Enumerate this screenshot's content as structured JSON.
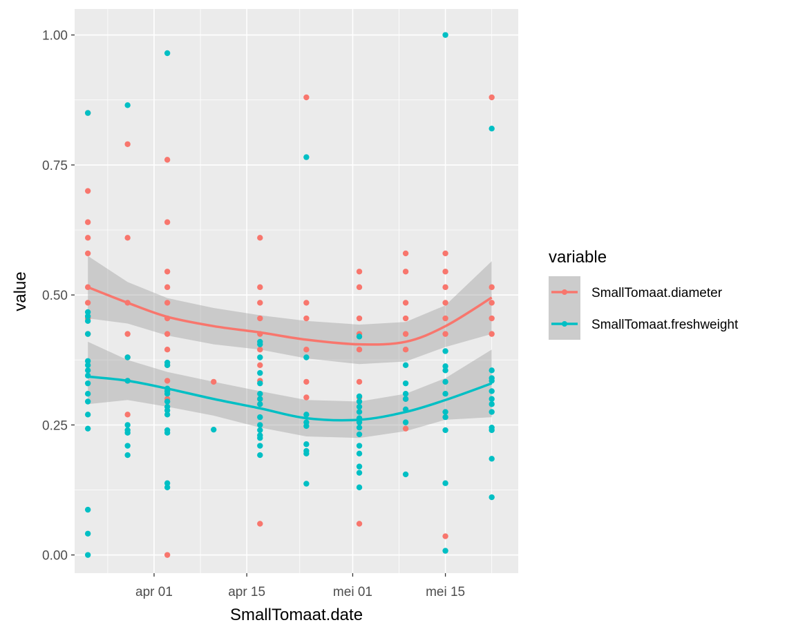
{
  "chart_data": {
    "type": "scatter",
    "title": "",
    "xlabel": "SmallTomaat.date",
    "ylabel": "value",
    "x_axis": {
      "type": "date",
      "range": [
        "2019-03-20",
        "2019-05-26"
      ],
      "tick_dates": [
        "2019-04-01",
        "2019-04-15",
        "2019-05-01",
        "2019-05-15"
      ],
      "tick_labels": [
        "apr 01",
        "apr 15",
        "mei 01",
        "mei 15"
      ]
    },
    "y_axis": {
      "range": [
        -0.035,
        1.05
      ],
      "ticks": [
        0.0,
        0.25,
        0.5,
        0.75,
        1.0
      ],
      "tick_labels": [
        "0.00",
        "0.25",
        "0.50",
        "0.75",
        "1.00"
      ]
    },
    "grid": true,
    "panel_background": "#ebebeb",
    "legend": {
      "title": "variable",
      "position": "right",
      "entries": [
        "SmallTomaat.diameter",
        "SmallTomaat.freshweight"
      ]
    },
    "series": [
      {
        "name": "SmallTomaat.diameter",
        "color": "#f8766d",
        "points": [
          [
            "2019-03-22",
            0.85
          ],
          [
            "2019-03-22",
            0.7
          ],
          [
            "2019-03-22",
            0.64
          ],
          [
            "2019-03-22",
            0.61
          ],
          [
            "2019-03-22",
            0.58
          ],
          [
            "2019-03-22",
            0.515
          ],
          [
            "2019-03-22",
            0.485
          ],
          [
            "2019-03-22",
            0.455
          ],
          [
            "2019-03-22",
            0.425
          ],
          [
            "2019-03-28",
            0.79
          ],
          [
            "2019-03-28",
            0.61
          ],
          [
            "2019-03-28",
            0.485
          ],
          [
            "2019-03-28",
            0.425
          ],
          [
            "2019-03-28",
            0.38
          ],
          [
            "2019-03-28",
            0.335
          ],
          [
            "2019-03-28",
            0.27
          ],
          [
            "2019-04-03",
            0.76
          ],
          [
            "2019-04-03",
            0.64
          ],
          [
            "2019-04-03",
            0.545
          ],
          [
            "2019-04-03",
            0.515
          ],
          [
            "2019-04-03",
            0.485
          ],
          [
            "2019-04-03",
            0.455
          ],
          [
            "2019-04-03",
            0.425
          ],
          [
            "2019-04-03",
            0.395
          ],
          [
            "2019-04-03",
            0.365
          ],
          [
            "2019-04-03",
            0.335
          ],
          [
            "2019-04-03",
            0.3
          ],
          [
            "2019-04-03",
            0.0
          ],
          [
            "2019-04-10",
            0.333
          ],
          [
            "2019-04-17",
            0.61
          ],
          [
            "2019-04-17",
            0.515
          ],
          [
            "2019-04-17",
            0.485
          ],
          [
            "2019-04-17",
            0.455
          ],
          [
            "2019-04-17",
            0.425
          ],
          [
            "2019-04-17",
            0.395
          ],
          [
            "2019-04-17",
            0.365
          ],
          [
            "2019-04-17",
            0.335
          ],
          [
            "2019-04-17",
            0.3
          ],
          [
            "2019-04-17",
            0.06
          ],
          [
            "2019-04-24",
            0.88
          ],
          [
            "2019-04-24",
            0.485
          ],
          [
            "2019-04-24",
            0.455
          ],
          [
            "2019-04-24",
            0.395
          ],
          [
            "2019-04-24",
            0.333
          ],
          [
            "2019-04-24",
            0.303
          ],
          [
            "2019-05-02",
            0.545
          ],
          [
            "2019-05-02",
            0.515
          ],
          [
            "2019-05-02",
            0.455
          ],
          [
            "2019-05-02",
            0.425
          ],
          [
            "2019-05-02",
            0.395
          ],
          [
            "2019-05-02",
            0.333
          ],
          [
            "2019-05-02",
            0.303
          ],
          [
            "2019-05-02",
            0.06
          ],
          [
            "2019-05-09",
            0.58
          ],
          [
            "2019-05-09",
            0.545
          ],
          [
            "2019-05-09",
            0.485
          ],
          [
            "2019-05-09",
            0.455
          ],
          [
            "2019-05-09",
            0.425
          ],
          [
            "2019-05-09",
            0.395
          ],
          [
            "2019-05-09",
            0.3
          ],
          [
            "2019-05-09",
            0.243
          ],
          [
            "2019-05-15",
            0.58
          ],
          [
            "2019-05-15",
            0.545
          ],
          [
            "2019-05-15",
            0.515
          ],
          [
            "2019-05-15",
            0.485
          ],
          [
            "2019-05-15",
            0.455
          ],
          [
            "2019-05-15",
            0.425
          ],
          [
            "2019-05-15",
            0.036
          ],
          [
            "2019-05-22",
            0.88
          ],
          [
            "2019-05-22",
            0.515
          ],
          [
            "2019-05-22",
            0.485
          ],
          [
            "2019-05-22",
            0.455
          ],
          [
            "2019-05-22",
            0.425
          ]
        ],
        "smooth_line": [
          [
            "2019-03-22",
            0.515
          ],
          [
            "2019-03-28",
            0.485
          ],
          [
            "2019-04-03",
            0.458
          ],
          [
            "2019-04-10",
            0.44
          ],
          [
            "2019-04-17",
            0.428
          ],
          [
            "2019-04-24",
            0.414
          ],
          [
            "2019-05-02",
            0.405
          ],
          [
            "2019-05-09",
            0.41
          ],
          [
            "2019-05-15",
            0.44
          ],
          [
            "2019-05-22",
            0.495
          ]
        ],
        "smooth_band": [
          [
            "2019-03-22",
            0.455,
            0.575
          ],
          [
            "2019-03-28",
            0.445,
            0.525
          ],
          [
            "2019-04-03",
            0.422,
            0.494
          ],
          [
            "2019-04-10",
            0.405,
            0.475
          ],
          [
            "2019-04-17",
            0.395,
            0.461
          ],
          [
            "2019-04-24",
            0.378,
            0.45
          ],
          [
            "2019-05-02",
            0.367,
            0.443
          ],
          [
            "2019-05-09",
            0.372,
            0.448
          ],
          [
            "2019-05-15",
            0.4,
            0.48
          ],
          [
            "2019-05-22",
            0.425,
            0.565
          ]
        ]
      },
      {
        "name": "SmallTomaat.freshweight",
        "color": "#00bfc4",
        "points": [
          [
            "2019-03-22",
            0.85
          ],
          [
            "2019-03-22",
            0.467
          ],
          [
            "2019-03-22",
            0.459
          ],
          [
            "2019-03-22",
            0.45
          ],
          [
            "2019-03-22",
            0.425
          ],
          [
            "2019-03-22",
            0.373
          ],
          [
            "2019-03-22",
            0.365
          ],
          [
            "2019-03-22",
            0.355
          ],
          [
            "2019-03-22",
            0.345
          ],
          [
            "2019-03-22",
            0.33
          ],
          [
            "2019-03-22",
            0.31
          ],
          [
            "2019-03-22",
            0.295
          ],
          [
            "2019-03-22",
            0.27
          ],
          [
            "2019-03-22",
            0.243
          ],
          [
            "2019-03-22",
            0.087
          ],
          [
            "2019-03-22",
            0.041
          ],
          [
            "2019-03-22",
            0.0
          ],
          [
            "2019-03-28",
            0.865
          ],
          [
            "2019-03-28",
            0.38
          ],
          [
            "2019-03-28",
            0.335
          ],
          [
            "2019-03-28",
            0.25
          ],
          [
            "2019-03-28",
            0.24
          ],
          [
            "2019-03-28",
            0.235
          ],
          [
            "2019-03-28",
            0.21
          ],
          [
            "2019-03-28",
            0.192
          ],
          [
            "2019-04-03",
            0.965
          ],
          [
            "2019-04-03",
            0.37
          ],
          [
            "2019-04-03",
            0.365
          ],
          [
            "2019-04-03",
            0.32
          ],
          [
            "2019-04-03",
            0.315
          ],
          [
            "2019-04-03",
            0.31
          ],
          [
            "2019-04-03",
            0.295
          ],
          [
            "2019-04-03",
            0.285
          ],
          [
            "2019-04-03",
            0.278
          ],
          [
            "2019-04-03",
            0.27
          ],
          [
            "2019-04-03",
            0.24
          ],
          [
            "2019-04-03",
            0.235
          ],
          [
            "2019-04-03",
            0.138
          ],
          [
            "2019-04-03",
            0.13
          ],
          [
            "2019-04-10",
            0.241
          ],
          [
            "2019-04-17",
            0.41
          ],
          [
            "2019-04-17",
            0.405
          ],
          [
            "2019-04-17",
            0.38
          ],
          [
            "2019-04-17",
            0.35
          ],
          [
            "2019-04-17",
            0.33
          ],
          [
            "2019-04-17",
            0.31
          ],
          [
            "2019-04-17",
            0.3
          ],
          [
            "2019-04-17",
            0.29
          ],
          [
            "2019-04-17",
            0.265
          ],
          [
            "2019-04-17",
            0.25
          ],
          [
            "2019-04-17",
            0.24
          ],
          [
            "2019-04-17",
            0.23
          ],
          [
            "2019-04-17",
            0.225
          ],
          [
            "2019-04-17",
            0.21
          ],
          [
            "2019-04-17",
            0.192
          ],
          [
            "2019-04-24",
            0.765
          ],
          [
            "2019-04-24",
            0.38
          ],
          [
            "2019-04-24",
            0.27
          ],
          [
            "2019-04-24",
            0.255
          ],
          [
            "2019-04-24",
            0.248
          ],
          [
            "2019-04-24",
            0.213
          ],
          [
            "2019-04-24",
            0.2
          ],
          [
            "2019-04-24",
            0.195
          ],
          [
            "2019-04-24",
            0.137
          ],
          [
            "2019-05-02",
            0.42
          ],
          [
            "2019-05-02",
            0.305
          ],
          [
            "2019-05-02",
            0.295
          ],
          [
            "2019-05-02",
            0.285
          ],
          [
            "2019-05-02",
            0.275
          ],
          [
            "2019-05-02",
            0.263
          ],
          [
            "2019-05-02",
            0.255
          ],
          [
            "2019-05-02",
            0.245
          ],
          [
            "2019-05-02",
            0.232
          ],
          [
            "2019-05-02",
            0.21
          ],
          [
            "2019-05-02",
            0.195
          ],
          [
            "2019-05-02",
            0.17
          ],
          [
            "2019-05-02",
            0.158
          ],
          [
            "2019-05-02",
            0.13
          ],
          [
            "2019-05-09",
            0.365
          ],
          [
            "2019-05-09",
            0.33
          ],
          [
            "2019-05-09",
            0.31
          ],
          [
            "2019-05-09",
            0.3
          ],
          [
            "2019-05-09",
            0.28
          ],
          [
            "2019-05-09",
            0.255
          ],
          [
            "2019-05-09",
            0.155
          ],
          [
            "2019-05-15",
            1.0
          ],
          [
            "2019-05-15",
            0.392
          ],
          [
            "2019-05-15",
            0.363
          ],
          [
            "2019-05-15",
            0.355
          ],
          [
            "2019-05-15",
            0.333
          ],
          [
            "2019-05-15",
            0.31
          ],
          [
            "2019-05-15",
            0.275
          ],
          [
            "2019-05-15",
            0.265
          ],
          [
            "2019-05-15",
            0.24
          ],
          [
            "2019-05-15",
            0.138
          ],
          [
            "2019-05-15",
            0.008
          ],
          [
            "2019-05-22",
            0.82
          ],
          [
            "2019-05-22",
            0.355
          ],
          [
            "2019-05-22",
            0.34
          ],
          [
            "2019-05-22",
            0.335
          ],
          [
            "2019-05-22",
            0.315
          ],
          [
            "2019-05-22",
            0.3
          ],
          [
            "2019-05-22",
            0.29
          ],
          [
            "2019-05-22",
            0.275
          ],
          [
            "2019-05-22",
            0.245
          ],
          [
            "2019-05-22",
            0.24
          ],
          [
            "2019-05-22",
            0.185
          ],
          [
            "2019-05-22",
            0.111
          ]
        ],
        "smooth_line": [
          [
            "2019-03-22",
            0.343
          ],
          [
            "2019-03-28",
            0.335
          ],
          [
            "2019-04-03",
            0.32
          ],
          [
            "2019-04-10",
            0.3
          ],
          [
            "2019-04-17",
            0.282
          ],
          [
            "2019-04-24",
            0.263
          ],
          [
            "2019-05-02",
            0.26
          ],
          [
            "2019-05-09",
            0.275
          ],
          [
            "2019-05-15",
            0.298
          ],
          [
            "2019-05-22",
            0.33
          ]
        ],
        "smooth_band": [
          [
            "2019-03-22",
            0.29,
            0.41
          ],
          [
            "2019-03-28",
            0.298,
            0.375
          ],
          [
            "2019-04-03",
            0.285,
            0.352
          ],
          [
            "2019-04-10",
            0.268,
            0.333
          ],
          [
            "2019-04-17",
            0.245,
            0.315
          ],
          [
            "2019-04-24",
            0.228,
            0.298
          ],
          [
            "2019-05-02",
            0.225,
            0.295
          ],
          [
            "2019-05-09",
            0.238,
            0.31
          ],
          [
            "2019-05-15",
            0.26,
            0.34
          ],
          [
            "2019-05-22",
            0.265,
            0.395
          ]
        ]
      }
    ]
  }
}
